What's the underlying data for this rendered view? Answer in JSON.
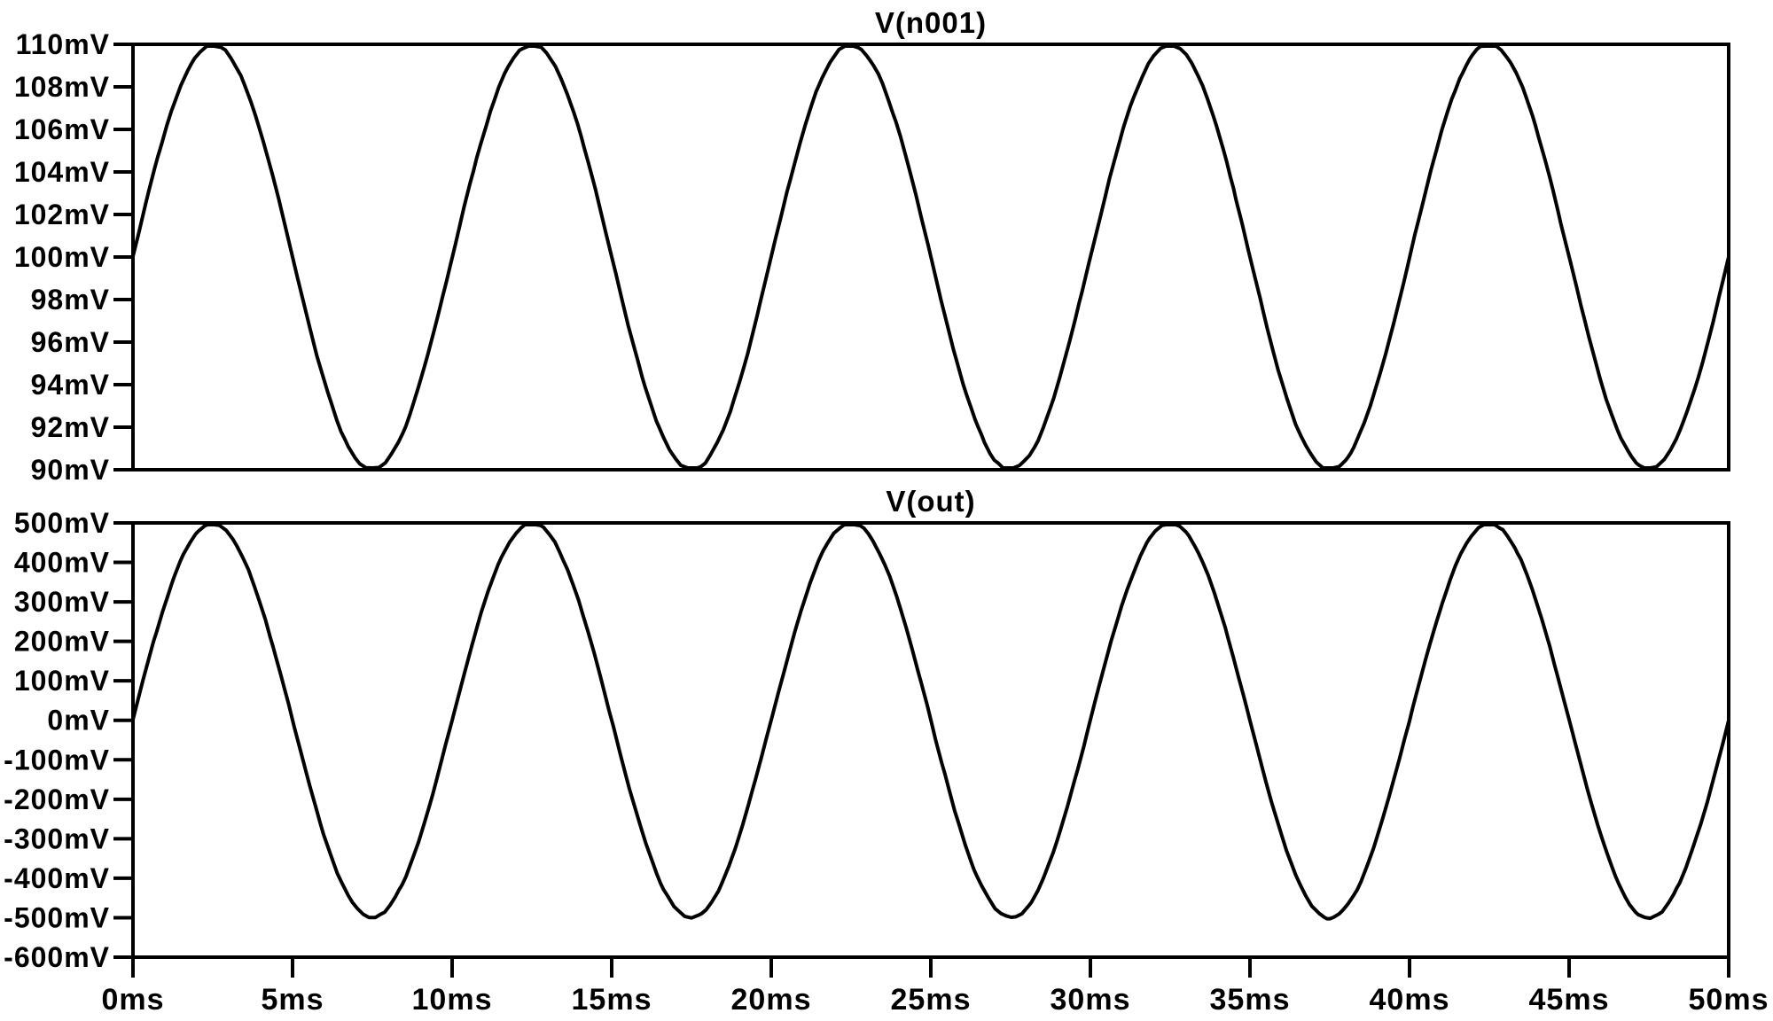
{
  "page": {
    "background": "#ffffff",
    "foreground": "#000000",
    "description": "Transient simulation waveform viewer with two stacked plot panes"
  },
  "chart_data": [
    {
      "type": "line",
      "title": "V(n001)",
      "series": [
        {
          "name": "V(n001)",
          "waveform": "sine",
          "offset_mV": 100,
          "amplitude_mV": 10,
          "period_ms": 10,
          "phase_deg": 0
        }
      ],
      "xlabel": "",
      "ylabel": "",
      "ylim_mV": [
        90,
        110
      ],
      "ytick_step_mV": 2,
      "ytick_labels": [
        "110mV",
        "108mV",
        "106mV",
        "104mV",
        "102mV",
        "100mV",
        "98mV",
        "96mV",
        "94mV",
        "92mV",
        "90mV"
      ],
      "xlim_ms": [
        0,
        50
      ],
      "grid": false,
      "legend": "none",
      "line_color": "#000000"
    },
    {
      "type": "line",
      "title": "V(out)",
      "series": [
        {
          "name": "V(out)",
          "waveform": "sine",
          "offset_mV": 0,
          "amplitude_mV": 500,
          "period_ms": 10,
          "phase_deg": 0
        }
      ],
      "xlabel": "",
      "ylabel": "",
      "ylim_mV": [
        -600,
        500
      ],
      "ytick_step_mV": 100,
      "ytick_labels": [
        "500mV",
        "400mV",
        "300mV",
        "200mV",
        "100mV",
        "0mV",
        "-100mV",
        "-200mV",
        "-300mV",
        "-400mV",
        "-500mV",
        "-600mV"
      ],
      "xlim_ms": [
        0,
        50
      ],
      "grid": false,
      "legend": "none",
      "line_color": "#000000"
    }
  ],
  "x_axis": {
    "tick_step_ms": 5,
    "tick_labels": [
      "0ms",
      "5ms",
      "10ms",
      "15ms",
      "20ms",
      "25ms",
      "30ms",
      "35ms",
      "40ms",
      "45ms",
      "50ms"
    ]
  }
}
